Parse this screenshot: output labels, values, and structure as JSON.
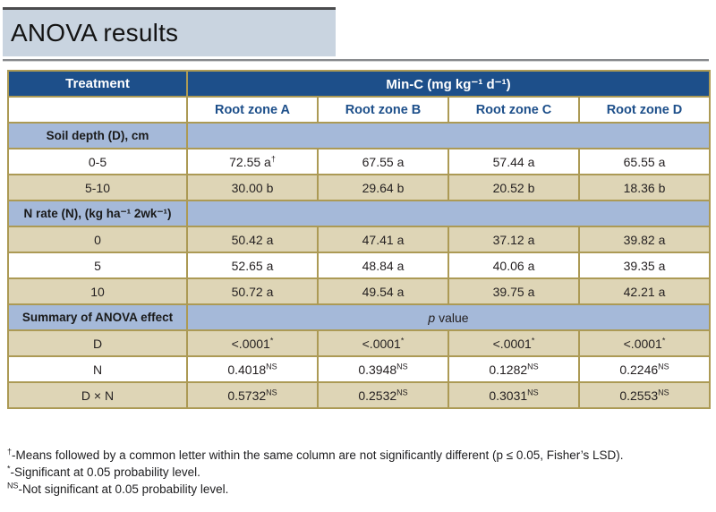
{
  "page": {
    "title": "ANOVA results"
  },
  "colors": {
    "title_bar_bg": "#c9d4e0",
    "title_bar_top_rule": "#4b4b4d",
    "page_rule_gray": "#87898c",
    "header_blue": "#1d4f8a",
    "section_row_blue": "#a5b9d9",
    "alt_row_tan": "#ded5b6",
    "table_border_gold": "#ac9a55",
    "header_text_white": "#ffffff",
    "subheader_text_blue": "#1d4f8a",
    "body_text": "#231f20"
  },
  "table": {
    "col1_header": "Treatment",
    "group_header": "Min-C (mg kg⁻¹ d⁻¹)",
    "subheaders": [
      "Root zone A",
      "Root zone B",
      "Root zone C",
      "Root zone D"
    ],
    "sections": [
      {
        "label": "Soil depth (D), cm",
        "value_italic": "",
        "value_rest": "",
        "rows": [
          {
            "shade": "white",
            "label": "0-5",
            "cells": [
              {
                "v": "72.55 a",
                "sup": "†"
              },
              {
                "v": "67.55 a",
                "sup": ""
              },
              {
                "v": "57.44 a",
                "sup": ""
              },
              {
                "v": "65.55 a",
                "sup": ""
              }
            ]
          },
          {
            "shade": "tan",
            "label": "5-10",
            "cells": [
              {
                "v": "30.00 b",
                "sup": ""
              },
              {
                "v": "29.64 b",
                "sup": ""
              },
              {
                "v": "20.52 b",
                "sup": ""
              },
              {
                "v": "18.36 b",
                "sup": ""
              }
            ]
          }
        ]
      },
      {
        "label": "N rate (N), (kg ha⁻¹ 2wk⁻¹)",
        "value_italic": "",
        "value_rest": "",
        "rows": [
          {
            "shade": "tan",
            "label": "0",
            "cells": [
              {
                "v": "50.42 a",
                "sup": ""
              },
              {
                "v": "47.41 a",
                "sup": ""
              },
              {
                "v": "37.12 a",
                "sup": ""
              },
              {
                "v": "39.82 a",
                "sup": ""
              }
            ]
          },
          {
            "shade": "white",
            "label": "5",
            "cells": [
              {
                "v": "52.65 a",
                "sup": ""
              },
              {
                "v": "48.84 a",
                "sup": ""
              },
              {
                "v": "40.06 a",
                "sup": ""
              },
              {
                "v": "39.35 a",
                "sup": ""
              }
            ]
          },
          {
            "shade": "tan",
            "label": "10",
            "cells": [
              {
                "v": "50.72 a",
                "sup": ""
              },
              {
                "v": "49.54 a",
                "sup": ""
              },
              {
                "v": "39.75 a",
                "sup": ""
              },
              {
                "v": "42.21 a",
                "sup": ""
              }
            ]
          }
        ]
      },
      {
        "label": "Summary of ANOVA effect",
        "value_italic": "p",
        "value_rest": " value",
        "rows": [
          {
            "shade": "tan",
            "label": "D",
            "cells": [
              {
                "v": "<.0001",
                "sup": "*"
              },
              {
                "v": "<.0001",
                "sup": "*"
              },
              {
                "v": "<.0001",
                "sup": "*"
              },
              {
                "v": "<.0001",
                "sup": "*"
              }
            ]
          },
          {
            "shade": "white",
            "label": "N",
            "cells": [
              {
                "v": "0.4018",
                "sup": "NS"
              },
              {
                "v": "0.3948",
                "sup": "NS"
              },
              {
                "v": "0.1282",
                "sup": "NS"
              },
              {
                "v": "0.2246",
                "sup": "NS"
              }
            ]
          },
          {
            "shade": "tan",
            "label": "D × N",
            "cells": [
              {
                "v": "0.5732",
                "sup": "NS"
              },
              {
                "v": "0.2532",
                "sup": "NS"
              },
              {
                "v": "0.3031",
                "sup": "NS"
              },
              {
                "v": "0.2553",
                "sup": "NS"
              }
            ]
          }
        ]
      }
    ]
  },
  "footnotes": [
    {
      "sup": "†",
      "text": "-Means followed by a common letter within the same column are not significantly different (p ≤ 0.05, Fisher’s LSD)."
    },
    {
      "sup": "*",
      "text": "-Significant at 0.05 probability level."
    },
    {
      "sup": "NS",
      "text": "-Not significant at 0.05 probability level."
    }
  ]
}
